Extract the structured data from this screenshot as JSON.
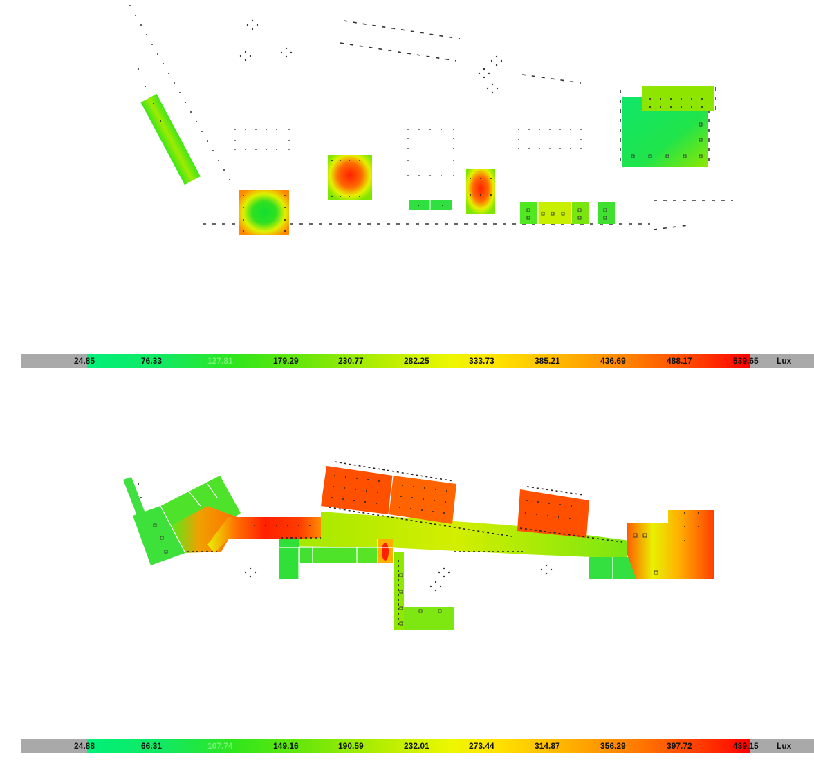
{
  "legends": [
    {
      "id": "top",
      "unit": "Lux",
      "ticks": [
        "24.85",
        "76.33",
        "127.81",
        "179.29",
        "230.77",
        "282.25",
        "333.73",
        "385.21",
        "436.69",
        "488.17",
        "539.65"
      ]
    },
    {
      "id": "bottom",
      "unit": "Lux",
      "ticks": [
        "24.88",
        "66.31",
        "107.74",
        "149.16",
        "190.59",
        "232.01",
        "273.44",
        "314.87",
        "356.29",
        "397.72",
        "439.15"
      ]
    }
  ],
  "colors": {
    "low": "#00f07a",
    "mid": "#eef700",
    "high": "#ff0000",
    "legend_background": "#a9a9a9"
  }
}
